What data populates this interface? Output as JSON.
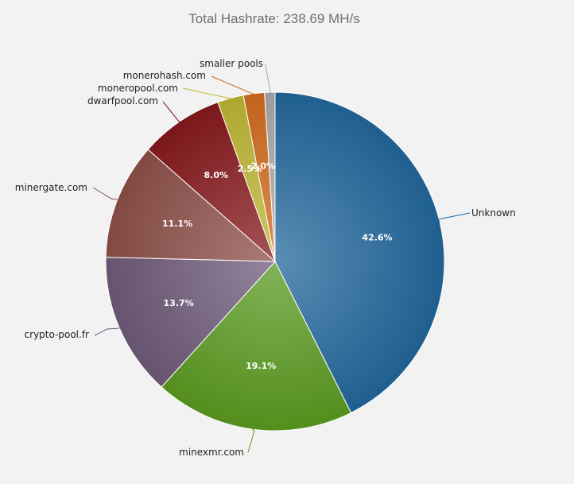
{
  "chart_data": {
    "type": "pie",
    "title": "Total Hashrate: 238.69 MH/s",
    "slices": [
      {
        "label": "Unknown",
        "value": 42.6,
        "value_label": "42.6%",
        "color": "#22679b"
      },
      {
        "label": "minexmr.com",
        "value": 19.1,
        "value_label": "19.1%",
        "color": "#5a9a20"
      },
      {
        "label": "crypto-pool.fr",
        "value": 13.7,
        "value_label": "13.7%",
        "color": "#6f5a79"
      },
      {
        "label": "minergate.com",
        "value": 11.1,
        "value_label": "11.1%",
        "color": "#8d4f49"
      },
      {
        "label": "dwarfpool.com",
        "value": 8.0,
        "value_label": "8.0%",
        "color": "#86191c"
      },
      {
        "label": "moneropool.com",
        "value": 2.5,
        "value_label": "2.5%",
        "color": "#bdb534"
      },
      {
        "label": "monerohash.com",
        "value": 2.0,
        "value_label": "2.0%",
        "color": "#d16b1d"
      },
      {
        "label": "smaller pools",
        "value": 1.0,
        "value_label": "",
        "color": "#a9aaa9"
      }
    ]
  }
}
